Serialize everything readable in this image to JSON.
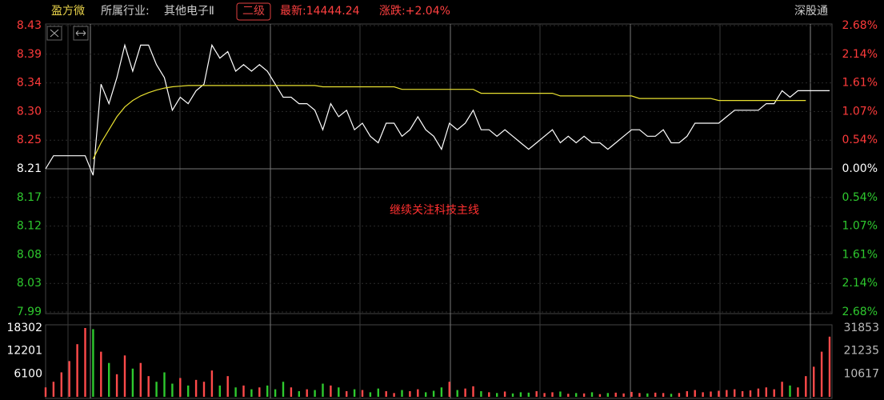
{
  "header": {
    "stock": "盈方微",
    "industry_label": "所属行业:",
    "industry": "其他电子Ⅱ",
    "level": "二级",
    "latest": "最新:14444.24",
    "change": "涨跌:+2.04%",
    "connect": "深股通"
  },
  "chart_data": [
    {
      "type": "line",
      "annotation": "继续关注科技主线",
      "ylim": [
        7.99,
        8.43
      ],
      "yticks": [
        8.43,
        {
          "value": 8.386,
          "label": "8.39"
        },
        {
          "value": 8.342,
          "label": "8.34"
        },
        {
          "value": 8.298,
          "label": "8.30"
        },
        {
          "value": 8.254,
          "label": "8.25"
        },
        8.21,
        {
          "value": 8.166,
          "label": "8.17"
        },
        {
          "value": 8.122,
          "label": "8.12"
        },
        {
          "value": 8.078,
          "label": "8.08"
        },
        {
          "value": 8.034,
          "label": "8.03"
        },
        7.99
      ],
      "y2lim": [
        -2.68,
        2.68
      ],
      "y2ticks": [
        {
          "value": 2.68,
          "label": "2.68%"
        },
        {
          "value": 2.14,
          "label": "2.14%"
        },
        {
          "value": 1.61,
          "label": "1.61%"
        },
        {
          "value": 1.07,
          "label": "1.07%"
        },
        {
          "value": 0.54,
          "label": "0.54%"
        },
        {
          "value": 0,
          "label": "0.00%"
        },
        {
          "value": -0.54,
          "label": "0.54%"
        },
        {
          "value": -1.07,
          "label": "1.07%"
        },
        {
          "value": -1.61,
          "label": "1.61%"
        },
        {
          "value": -2.14,
          "label": "2.14%"
        },
        {
          "value": -2.68,
          "label": "2.68%"
        }
      ],
      "up_color": "#ff3b3b",
      "flat_color": "#ffffff",
      "down_color": "#2ec92e",
      "grid": true,
      "series": [
        {
          "color": "#ffffff",
          "values": [
            8.21,
            8.23,
            8.23,
            8.23,
            8.23,
            8.23,
            8.2,
            8.34,
            8.31,
            8.35,
            8.4,
            8.36,
            8.4,
            8.4,
            8.37,
            8.35,
            8.3,
            8.32,
            8.31,
            8.33,
            8.34,
            8.4,
            8.38,
            8.39,
            8.36,
            8.37,
            8.36,
            8.37,
            8.36,
            8.34,
            8.32,
            8.32,
            8.31,
            8.31,
            8.3,
            8.27,
            8.31,
            8.29,
            8.3,
            8.27,
            8.28,
            8.26,
            8.25,
            8.28,
            8.28,
            8.26,
            8.27,
            8.29,
            8.27,
            8.26,
            8.24,
            8.28,
            8.27,
            8.28,
            8.3,
            8.27,
            8.27,
            8.26,
            8.27,
            8.26,
            8.25,
            8.24,
            8.25,
            8.26,
            8.27,
            8.25,
            8.26,
            8.25,
            8.26,
            8.25,
            8.25,
            8.24,
            8.25,
            8.26,
            8.27,
            8.27,
            8.26,
            8.26,
            8.27,
            8.25,
            8.25,
            8.26,
            8.28,
            8.28,
            8.28,
            8.28,
            8.29,
            8.3,
            8.3,
            8.3,
            8.3,
            8.31,
            8.31,
            8.33,
            8.32,
            8.33,
            8.33,
            8.33,
            8.33,
            8.33
          ]
        },
        {
          "color": "#e8e030",
          "values": [
            null,
            null,
            null,
            null,
            null,
            null,
            8.225,
            8.25,
            8.27,
            8.29,
            8.305,
            8.315,
            8.322,
            8.327,
            8.331,
            8.334,
            8.336,
            8.337,
            8.338,
            8.338,
            8.338,
            8.338,
            8.338,
            8.338,
            8.338,
            8.338,
            8.338,
            8.338,
            8.338,
            8.338,
            8.338,
            8.338,
            8.338,
            8.338,
            8.338,
            8.336,
            8.336,
            8.336,
            8.336,
            8.336,
            8.336,
            8.336,
            8.336,
            8.336,
            8.336,
            8.332,
            8.332,
            8.332,
            8.332,
            8.332,
            8.332,
            8.332,
            8.332,
            8.332,
            8.332,
            8.326,
            8.326,
            8.326,
            8.326,
            8.326,
            8.326,
            8.326,
            8.326,
            8.326,
            8.326,
            8.322,
            8.322,
            8.322,
            8.322,
            8.322,
            8.322,
            8.322,
            8.322,
            8.322,
            8.322,
            8.318,
            8.318,
            8.318,
            8.318,
            8.318,
            8.318,
            8.318,
            8.318,
            8.318,
            8.318,
            8.315,
            8.315,
            8.315,
            8.315,
            8.315,
            8.315,
            8.315,
            8.315,
            8.315,
            8.315,
            8.315,
            8.315,
            null,
            null,
            null
          ]
        }
      ]
    },
    {
      "type": "bar",
      "ylim": [
        0,
        18302
      ],
      "yticks": [
        18302,
        12201,
        6100
      ],
      "y2lim": [
        0,
        31853
      ],
      "y2ticks": [
        31853,
        21235,
        10617
      ],
      "up_color": "#ff4a4a",
      "down_color": "#2ec92e",
      "values": [
        2500,
        4000,
        6500,
        9500,
        14000,
        18302,
        18000,
        12000,
        9000,
        6000,
        11000,
        7500,
        9000,
        5500,
        4000,
        6500,
        3500,
        5000,
        3000,
        4500,
        4000,
        7000,
        3000,
        5500,
        2500,
        3000,
        2000,
        2500,
        3000,
        2000,
        4000,
        2500,
        1500,
        2000,
        1800,
        3500,
        3000,
        2500,
        1500,
        2000,
        1800,
        1200,
        2200,
        1500,
        1000,
        1800,
        1500,
        2000,
        1200,
        1600,
        2500,
        4000,
        1800,
        2200,
        2800,
        1500,
        1200,
        1000,
        1400,
        900,
        1200,
        1100,
        1500,
        1000,
        1200,
        1400,
        800,
        1000,
        900,
        1200,
        700,
        1000,
        1100,
        900,
        1300,
        1000,
        900,
        1100,
        1000,
        800,
        1000,
        1500,
        1800,
        1200,
        1400,
        1600,
        1800,
        2000,
        1500,
        1700,
        2200,
        2500,
        2000,
        4000,
        3000,
        2500,
        5500,
        8000,
        12000,
        16000
      ]
    }
  ]
}
